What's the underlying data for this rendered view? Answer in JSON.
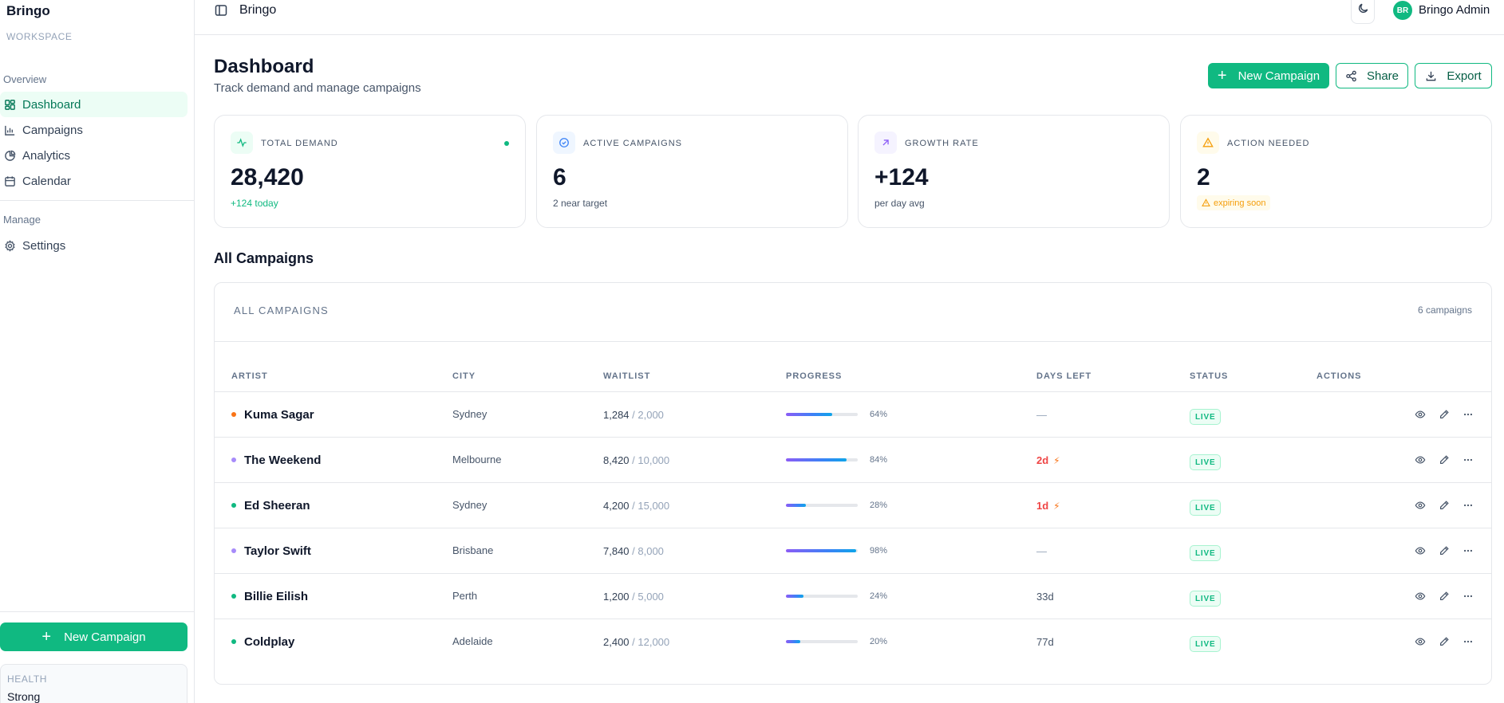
{
  "sidebar": {
    "brand": "Bringo",
    "workspace": "WORKSPACE",
    "groups": {
      "overview": "Overview",
      "manage": "Manage"
    },
    "items": [
      {
        "label": "Dashboard",
        "icon": "dashboard-icon",
        "active": true
      },
      {
        "label": "Campaigns",
        "icon": "bar-chart-icon"
      },
      {
        "label": "Analytics",
        "icon": "pie-chart-icon"
      },
      {
        "label": "Calendar",
        "icon": "calendar-icon"
      },
      {
        "label": "Settings",
        "icon": "gear-icon"
      }
    ],
    "new_campaign_label": "New Campaign",
    "health": {
      "label": "HEALTH",
      "value": "Strong"
    }
  },
  "topbar": {
    "title": "Bringo",
    "user_initials": "BR",
    "user_name": "Bringo Admin"
  },
  "header": {
    "title": "Dashboard",
    "subtitle": "Track demand and manage campaigns",
    "new_campaign_label": "New Campaign",
    "share_label": "Share",
    "export_label": "Export"
  },
  "stats": [
    {
      "label": "TOTAL DEMAND",
      "value": "28,420",
      "sub": "+124 today",
      "icon": "activity-icon",
      "color": "#10b981"
    },
    {
      "label": "ACTIVE CAMPAIGNS",
      "value": "6",
      "sub": "2 near target",
      "icon": "check-circle-icon",
      "color": "#3b82f6"
    },
    {
      "label": "GROWTH RATE",
      "value": "+124",
      "sub": "per day avg",
      "icon": "arrow-up-right-icon",
      "color": "#8b5cf6"
    },
    {
      "label": "ACTION NEEDED",
      "value": "2",
      "sub": "expiring soon",
      "icon": "warning-icon",
      "color": "#f59e0b"
    }
  ],
  "campaigns": {
    "section_title": "All Campaigns",
    "card_label": "ALL CAMPAIGNS",
    "count": "6 campaigns",
    "columns": {
      "artist": "ARTIST",
      "city": "CITY",
      "waitlist": "WAITLIST",
      "progress": "PROGRESS",
      "days_left": "DAYS LEFT",
      "status": "STATUS",
      "actions": "ACTIONS"
    },
    "rows": [
      {
        "artist": "Kuma Sagar",
        "city": "Sydney",
        "waitlist": "1,284",
        "goal": "/ 2,000",
        "progress": 64,
        "progress_label": "64%",
        "days": "—",
        "urgent": false,
        "status": "LIVE",
        "dot_color": "#f97316"
      },
      {
        "artist": "The Weekend",
        "city": "Melbourne",
        "waitlist": "8,420",
        "goal": "/ 10,000",
        "progress": 84,
        "progress_label": "84%",
        "days": "2d",
        "urgent": true,
        "status": "LIVE",
        "dot_color": "#a78bfa"
      },
      {
        "artist": "Ed Sheeran",
        "city": "Sydney",
        "waitlist": "4,200",
        "goal": "/ 15,000",
        "progress": 28,
        "progress_label": "28%",
        "days": "1d",
        "urgent": true,
        "status": "LIVE",
        "dot_color": "#10b981"
      },
      {
        "artist": "Taylor Swift",
        "city": "Brisbane",
        "waitlist": "7,840",
        "goal": "/ 8,000",
        "progress": 98,
        "progress_label": "98%",
        "days": "—",
        "urgent": false,
        "status": "LIVE",
        "dot_color": "#a78bfa"
      },
      {
        "artist": "Billie Eilish",
        "city": "Perth",
        "waitlist": "1,200",
        "goal": "/ 5,000",
        "progress": 24,
        "progress_label": "24%",
        "days": "33d",
        "urgent": false,
        "status": "LIVE",
        "dot_color": "#10b981"
      },
      {
        "artist": "Coldplay",
        "city": "Adelaide",
        "waitlist": "2,400",
        "goal": "/ 12,000",
        "progress": 20,
        "progress_label": "20%",
        "days": "77d",
        "urgent": false,
        "status": "LIVE",
        "dot_color": "#10b981"
      }
    ]
  }
}
